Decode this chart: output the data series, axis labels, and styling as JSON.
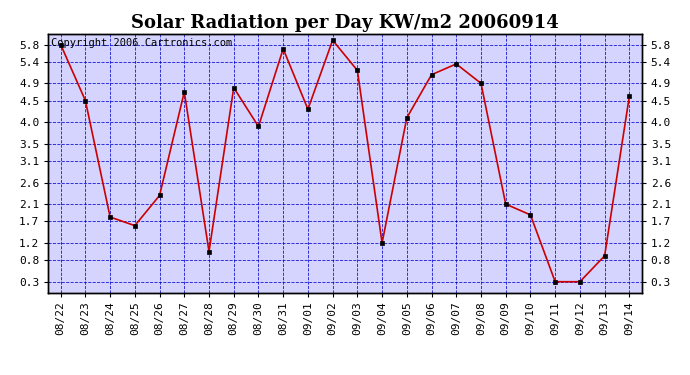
{
  "title": "Solar Radiation per Day KW/m2 20060914",
  "copyright": "Copyright 2006 Cartronics.com",
  "x_labels": [
    "08/22",
    "08/23",
    "08/24",
    "08/25",
    "08/26",
    "08/27",
    "08/28",
    "08/29",
    "08/30",
    "08/31",
    "09/01",
    "09/02",
    "09/03",
    "09/04",
    "09/05",
    "09/06",
    "09/07",
    "09/08",
    "09/09",
    "09/10",
    "09/11",
    "09/12",
    "09/13",
    "09/14"
  ],
  "y_values": [
    5.8,
    4.5,
    1.8,
    1.6,
    2.3,
    4.7,
    1.0,
    4.8,
    3.9,
    5.7,
    4.3,
    5.9,
    5.2,
    1.2,
    4.1,
    5.1,
    5.35,
    4.9,
    2.1,
    1.85,
    0.3,
    0.3,
    0.9,
    4.6
  ],
  "y_ticks": [
    0.3,
    0.8,
    1.2,
    1.7,
    2.1,
    2.6,
    3.1,
    3.5,
    4.0,
    4.5,
    4.9,
    5.4,
    5.8
  ],
  "y_min": 0.05,
  "y_max": 6.05,
  "line_color": "#cc0000",
  "marker": "s",
  "marker_size": 2.5,
  "bg_color": "#ffffff",
  "plot_bg_color": "#d4d4ff",
  "grid_color": "#0000cc",
  "title_fontsize": 13,
  "tick_fontsize": 8,
  "copyright_fontsize": 7.5
}
